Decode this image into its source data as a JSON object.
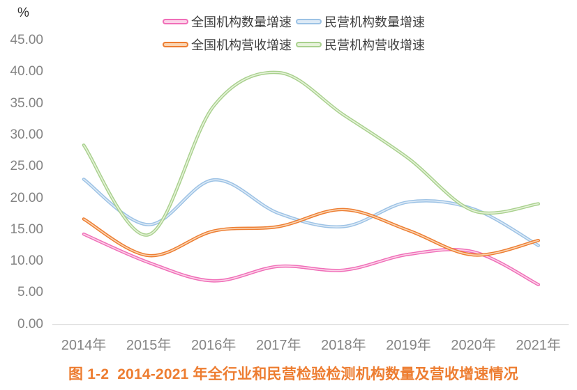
{
  "chart_data": {
    "type": "line",
    "title": "图 1-2  2014-2021 年全行业和民营检验检测机构数量及营收增速情况",
    "y_unit": "%",
    "categories": [
      "2014年",
      "2015年",
      "2016年",
      "2017年",
      "2018年",
      "2019年",
      "2020年",
      "2021年"
    ],
    "y_ticks": [
      "45.00",
      "40.00",
      "35.00",
      "30.00",
      "25.00",
      "20.00",
      "15.00",
      "10.00",
      "5.00",
      "0.00"
    ],
    "ylim": [
      0,
      45
    ],
    "grid": false,
    "smooth": true,
    "legend_position": "top",
    "caption_color": "#ED7D31",
    "axis_text_color": "#848484",
    "axis_line_color": "#D9D9D9",
    "series": [
      {
        "name": "全国机构数量增速",
        "color": "#F06EB8",
        "inner_color": "#FBD2E8",
        "values": [
          14.3,
          9.8,
          6.9,
          9.2,
          8.6,
          11.1,
          11.5,
          6.3
        ]
      },
      {
        "name": "民营机构数量增速",
        "color": "#9CC2E5",
        "inner_color": "#DDEAF6",
        "values": [
          23.0,
          15.8,
          22.9,
          17.6,
          15.5,
          19.4,
          18.3,
          12.5
        ]
      },
      {
        "name": "全国机构营收增速",
        "color": "#ED7D31",
        "inner_color": "#FAD4B2",
        "values": [
          16.7,
          10.9,
          14.8,
          15.5,
          18.2,
          14.9,
          11.0,
          13.3
        ]
      },
      {
        "name": "民营机构营收增速",
        "color": "#A9D18E",
        "inner_color": "#E6F2DA",
        "values": [
          28.4,
          14.2,
          34.6,
          39.9,
          33.2,
          26.3,
          18.0,
          19.1
        ]
      }
    ]
  }
}
